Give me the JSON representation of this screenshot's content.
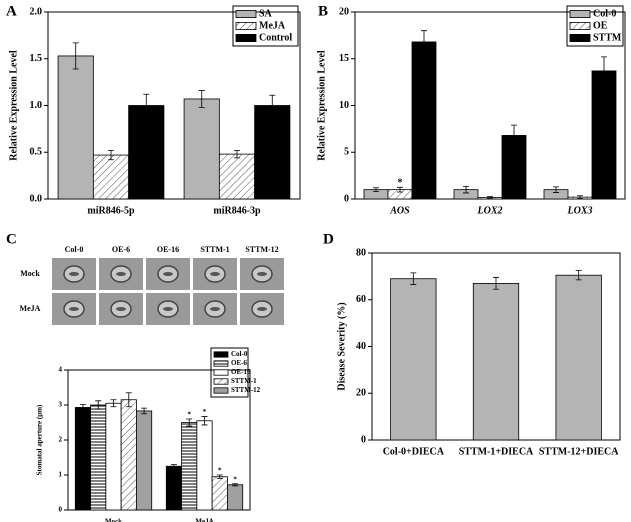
{
  "chart_data": [
    {
      "type": "bar",
      "panel": "A",
      "ylabel": "Relative Expression Level",
      "legend": "upper right",
      "categories": [
        "miR846-5p",
        "miR846-3p"
      ],
      "ylim": [
        0,
        2
      ],
      "yticks": [
        {
          "value": 0,
          "label": "0.0"
        },
        0.5,
        {
          "value": 1,
          "label": "1.0"
        },
        1.5,
        {
          "value": 2,
          "label": "2.0"
        }
      ],
      "series": [
        {
          "name": "SA",
          "color": "#b4b4b4",
          "pattern": "solid",
          "values": [
            1.53,
            1.07
          ],
          "errors": [
            0.14,
            0.09
          ]
        },
        {
          "name": "MeJA",
          "color": "#ffffff",
          "pattern": "diagonal",
          "values": [
            0.47,
            0.48
          ],
          "errors": [
            0.05,
            0.04
          ]
        },
        {
          "name": "Control",
          "color": "#000000",
          "pattern": "solid",
          "values": [
            1.0,
            1.0
          ],
          "errors": [
            0.12,
            0.11
          ]
        }
      ]
    },
    {
      "type": "bar",
      "panel": "B",
      "ylabel": "Relative Expression Level",
      "legend": "upper right",
      "italic_categories": true,
      "categories": [
        "AOS",
        "LOX2",
        "LOX3"
      ],
      "ylim": [
        0,
        20
      ],
      "yticks": [
        0,
        5,
        10,
        15,
        20
      ],
      "series": [
        {
          "name": "Col-0",
          "color": "#b4b4b4",
          "pattern": "solid",
          "values": [
            1.0,
            1.0,
            1.0
          ],
          "errors": [
            0.2,
            0.35,
            0.3
          ]
        },
        {
          "name": "OE",
          "color": "#ffffff",
          "pattern": "diagonal",
          "values": [
            1.0,
            0.15,
            0.2
          ],
          "errors": [
            0.25,
            0.1,
            0.15
          ],
          "significance": [
            "*",
            null,
            null
          ]
        },
        {
          "name": "STTM",
          "color": "#000000",
          "pattern": "solid",
          "values": [
            16.8,
            6.8,
            13.7
          ],
          "errors": [
            1.2,
            1.1,
            1.5
          ]
        }
      ]
    },
    {
      "type": "bar",
      "panel": "C",
      "ylabel": "Stomatal aperture (μm)",
      "legend": "upper right",
      "image_columns": [
        "Col-0",
        "OE-6",
        "OE-16",
        "STTM-1",
        "STTM-12"
      ],
      "image_rows": [
        "Mock",
        "MeJA"
      ],
      "categories": [
        "Mock",
        "MeJA"
      ],
      "ylim": [
        0,
        4
      ],
      "yticks": [
        0,
        1,
        2,
        3,
        4
      ],
      "series": [
        {
          "name": "Col-0",
          "color": "#000000",
          "pattern": "solid",
          "values": [
            2.93,
            1.25
          ],
          "errors": [
            0.08,
            0.05
          ]
        },
        {
          "name": "OE-6",
          "color": "#ffffff",
          "pattern": "horizontal",
          "values": [
            3.0,
            2.5
          ],
          "errors": [
            0.12,
            0.1
          ],
          "significance": [
            null,
            "*"
          ]
        },
        {
          "name": "OE-16",
          "color": "#ffffff",
          "pattern": "solid",
          "values": [
            3.05,
            2.55
          ],
          "errors": [
            0.1,
            0.12
          ],
          "significance": [
            null,
            "*"
          ]
        },
        {
          "name": "STTM-1",
          "color": "#ffffff",
          "pattern": "diagonal",
          "values": [
            3.15,
            0.95
          ],
          "errors": [
            0.2,
            0.05
          ],
          "significance": [
            null,
            "*"
          ]
        },
        {
          "name": "STTM-12",
          "color": "#a0a0a0",
          "pattern": "solid",
          "values": [
            2.83,
            0.72
          ],
          "errors": [
            0.08,
            0.03
          ],
          "significance": [
            null,
            "*"
          ]
        }
      ]
    },
    {
      "type": "bar",
      "panel": "D",
      "ylabel": "Disease Severity (%)",
      "categories": [
        "Col-0+DIECA",
        "STTM-1+DIECA",
        "STTM-12+DIECA"
      ],
      "ylim": [
        0,
        80
      ],
      "yticks": [
        0,
        20,
        40,
        60,
        80
      ],
      "series": [
        {
          "color": "#b4b4b4",
          "pattern": "solid",
          "values": [
            69,
            67,
            70.5
          ],
          "errors": [
            2.5,
            2.5,
            2
          ]
        }
      ]
    }
  ]
}
